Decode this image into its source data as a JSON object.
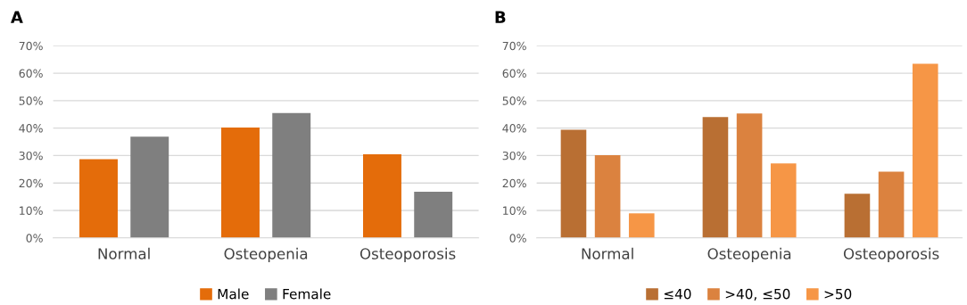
{
  "chart_data": [
    {
      "type": "bar",
      "title": "A",
      "categories": [
        "Normal",
        "Osteopenia",
        "Osteoporosis"
      ],
      "series": [
        {
          "name": "Male",
          "color": "#e46c0a",
          "values": [
            28.7,
            40.2,
            30.5
          ]
        },
        {
          "name": "Female",
          "color": "#7f7f7f",
          "values": [
            36.9,
            45.5,
            16.8
          ]
        }
      ],
      "ylim": [
        0,
        70
      ],
      "yticks": [
        {
          "value": 0,
          "label": "0%"
        },
        {
          "value": 10,
          "label": "10%"
        },
        {
          "value": 20,
          "label": "20%"
        },
        {
          "value": 30,
          "label": "30%"
        },
        {
          "value": 40,
          "label": "40%"
        },
        {
          "value": 50,
          "label": "50%"
        },
        {
          "value": 60,
          "label": "60%"
        },
        {
          "value": 70,
          "label": "70%"
        }
      ],
      "grid": "y",
      "legend": "bottom"
    },
    {
      "type": "bar",
      "title": "B",
      "categories": [
        "Normal",
        "Osteopenia",
        "Osteoporosis"
      ],
      "series": [
        {
          "name": "≤40",
          "color": "#b96f33",
          "values": [
            39.4,
            44.0,
            16.1
          ]
        },
        {
          "name": ">40, ≤50",
          "color": "#db823f",
          "values": [
            30.1,
            45.3,
            24.1
          ]
        },
        {
          "name": ">50",
          "color": "#f69646",
          "values": [
            8.9,
            27.1,
            63.4
          ]
        }
      ],
      "ylim": [
        0,
        70
      ],
      "yticks": [
        {
          "value": 0,
          "label": "0%"
        },
        {
          "value": 10,
          "label": "10%"
        },
        {
          "value": 20,
          "label": "20%"
        },
        {
          "value": 30,
          "label": "30%"
        },
        {
          "value": 40,
          "label": "40%"
        },
        {
          "value": 50,
          "label": "50%"
        },
        {
          "value": 60,
          "label": "60%"
        },
        {
          "value": 70,
          "label": "70%"
        }
      ],
      "grid": "y",
      "legend": "bottom"
    }
  ]
}
